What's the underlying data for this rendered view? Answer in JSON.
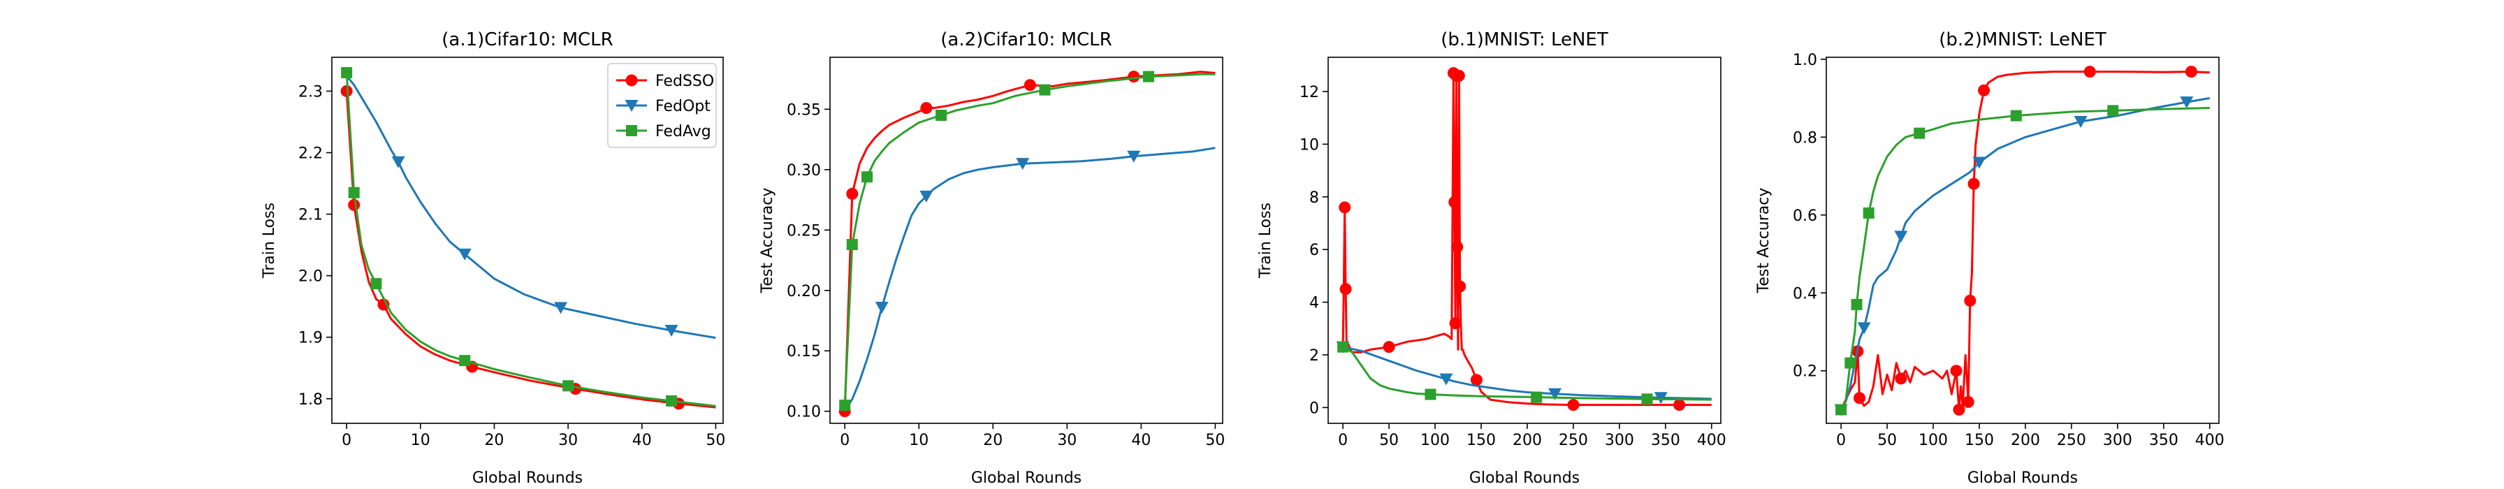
{
  "colors": {
    "FedSSO": "#ff0000",
    "FedOpt": "#1f77b4",
    "FedAvg": "#2ca02c"
  },
  "chart_data": [
    {
      "type": "line",
      "title": "(a.1)Cifar10: MCLR",
      "xlabel": "Global Rounds",
      "ylabel": "Train Loss",
      "xlim": [
        -2,
        51
      ],
      "ylim": [
        1.76,
        2.355
      ],
      "xticks": [
        "0",
        "10",
        "20",
        "30",
        "40",
        "50"
      ],
      "yticks": [
        "1.8",
        "1.9",
        "2.0",
        "2.1",
        "2.2",
        "2.3"
      ],
      "legend": {
        "position": "top-right",
        "entries": [
          "FedSSO",
          "FedOpt",
          "FedAvg"
        ]
      },
      "series": [
        {
          "name": "FedSSO",
          "marker": "circle",
          "x": [
            0,
            1,
            2,
            3,
            4,
            5,
            6,
            8,
            10,
            12,
            14,
            17,
            20,
            25,
            30,
            35,
            40,
            45,
            50
          ],
          "y": [
            2.3,
            2.115,
            2.04,
            1.99,
            1.962,
            1.953,
            1.93,
            1.905,
            1.885,
            1.872,
            1.862,
            1.852,
            1.843,
            1.829,
            1.818,
            1.808,
            1.799,
            1.792,
            1.786
          ],
          "markers_x": [
            0,
            1,
            5,
            17,
            31,
            45
          ]
        },
        {
          "name": "FedOpt",
          "marker": "triangle",
          "x": [
            0,
            1,
            2,
            4,
            6,
            7,
            8,
            10,
            12,
            14,
            16,
            18,
            20,
            24,
            29,
            34,
            39,
            44,
            50
          ],
          "y": [
            2.325,
            2.31,
            2.29,
            2.25,
            2.205,
            2.185,
            2.16,
            2.12,
            2.085,
            2.055,
            2.035,
            2.015,
            1.995,
            1.97,
            1.948,
            1.935,
            1.922,
            1.911,
            1.899
          ],
          "markers_x": [
            7,
            16,
            29,
            44
          ]
        },
        {
          "name": "FedAvg",
          "marker": "square",
          "x": [
            0,
            1,
            2,
            3,
            4,
            6,
            8,
            10,
            12,
            14,
            16,
            20,
            25,
            30,
            35,
            40,
            45,
            50
          ],
          "y": [
            2.33,
            2.135,
            2.05,
            2.01,
            1.987,
            1.94,
            1.912,
            1.893,
            1.879,
            1.869,
            1.862,
            1.848,
            1.834,
            1.821,
            1.811,
            1.802,
            1.795,
            1.788
          ],
          "markers_x": [
            0,
            1,
            4,
            16,
            30,
            44
          ]
        }
      ]
    },
    {
      "type": "line",
      "title": "(a.2)Cifar10: MCLR",
      "xlabel": "Global Rounds",
      "ylabel": "Test Accuracy",
      "xlim": [
        -2,
        51
      ],
      "ylim": [
        0.09,
        0.393
      ],
      "xticks": [
        "0",
        "10",
        "20",
        "30",
        "40",
        "50"
      ],
      "yticks": [
        "0.10",
        "0.15",
        "0.20",
        "0.25",
        "0.30",
        "0.35"
      ],
      "series": [
        {
          "name": "FedSSO",
          "marker": "circle",
          "x": [
            0,
            1,
            2,
            3,
            4,
            5,
            6,
            8,
            10,
            11,
            12,
            14,
            16,
            18,
            20,
            22,
            25,
            28,
            30,
            35,
            39,
            42,
            45,
            48,
            50
          ],
          "y": [
            0.1,
            0.28,
            0.305,
            0.318,
            0.326,
            0.332,
            0.337,
            0.343,
            0.348,
            0.351,
            0.351,
            0.353,
            0.356,
            0.358,
            0.361,
            0.365,
            0.37,
            0.369,
            0.371,
            0.374,
            0.377,
            0.378,
            0.379,
            0.381,
            0.38
          ],
          "markers_x": [
            0,
            1,
            11,
            25,
            39
          ]
        },
        {
          "name": "FedOpt",
          "marker": "triangle",
          "x": [
            0,
            1,
            2,
            3,
            4,
            5,
            6,
            7,
            8,
            9,
            10,
            11,
            12,
            14,
            16,
            18,
            20,
            24,
            28,
            32,
            36,
            39,
            43,
            47,
            50
          ],
          "y": [
            0.1,
            0.11,
            0.125,
            0.143,
            0.163,
            0.186,
            0.207,
            0.227,
            0.245,
            0.262,
            0.272,
            0.278,
            0.284,
            0.292,
            0.297,
            0.3,
            0.302,
            0.305,
            0.306,
            0.307,
            0.309,
            0.311,
            0.313,
            0.315,
            0.318
          ],
          "markers_x": [
            5,
            11,
            24,
            39
          ]
        },
        {
          "name": "FedAvg",
          "marker": "square",
          "x": [
            0,
            1,
            2,
            3,
            4,
            5,
            6,
            8,
            10,
            13,
            15,
            18,
            20,
            23,
            27,
            30,
            35,
            41,
            45,
            48,
            50
          ],
          "y": [
            0.105,
            0.238,
            0.272,
            0.294,
            0.307,
            0.315,
            0.322,
            0.331,
            0.339,
            0.345,
            0.349,
            0.353,
            0.355,
            0.361,
            0.366,
            0.369,
            0.373,
            0.377,
            0.378,
            0.379,
            0.379
          ],
          "markers_x": [
            0,
            1,
            3,
            13,
            27,
            41
          ]
        }
      ]
    },
    {
      "type": "line",
      "title": "(b.1)MNIST: LeNET",
      "xlabel": "Global Rounds",
      "ylabel": "Train Loss",
      "xlim": [
        -16,
        410
      ],
      "ylim": [
        -0.6,
        13.3
      ],
      "xticks": [
        "0",
        "50",
        "100",
        "150",
        "200",
        "250",
        "300",
        "350",
        "400"
      ],
      "yticks": [
        "0",
        "2",
        "4",
        "6",
        "8",
        "10",
        "12"
      ],
      "series": [
        {
          "name": "FedSSO",
          "marker": "circle",
          "x": [
            0,
            1,
            2,
            3,
            4,
            6,
            8,
            10,
            20,
            30,
            50,
            70,
            90,
            100,
            110,
            115,
            118,
            120,
            121,
            122,
            123,
            124,
            125,
            126,
            127,
            128,
            129,
            130,
            132,
            135,
            140,
            145,
            150,
            160,
            180,
            200,
            220,
            250,
            280,
            300,
            330,
            365,
            400
          ],
          "y": [
            2.3,
            4.6,
            7.6,
            4.5,
            2.3,
            2.4,
            2.2,
            2.1,
            2.1,
            2.2,
            2.3,
            2.5,
            2.6,
            2.7,
            2.8,
            2.7,
            2.6,
            12.7,
            7.8,
            3.2,
            12.6,
            6.1,
            2.2,
            12.6,
            4.6,
            3.1,
            2.2,
            2.2,
            2.0,
            1.8,
            1.5,
            1.05,
            0.6,
            0.3,
            0.2,
            0.15,
            0.12,
            0.1,
            0.1,
            0.1,
            0.1,
            0.1,
            0.1
          ],
          "markers_x": [
            2,
            3,
            50,
            120,
            121,
            122,
            123,
            124,
            126,
            127,
            145,
            250,
            365
          ]
        },
        {
          "name": "FedOpt",
          "marker": "triangle",
          "x": [
            0,
            20,
            40,
            60,
            80,
            100,
            120,
            140,
            160,
            180,
            200,
            230,
            260,
            300,
            340,
            400
          ],
          "y": [
            2.3,
            2.15,
            1.9,
            1.65,
            1.4,
            1.2,
            1.0,
            0.85,
            0.75,
            0.65,
            0.58,
            0.52,
            0.47,
            0.42,
            0.38,
            0.33
          ],
          "markers_x": [
            0,
            112,
            230,
            345
          ]
        },
        {
          "name": "FedAvg",
          "marker": "square",
          "x": [
            0,
            10,
            20,
            30,
            40,
            50,
            60,
            70,
            80,
            95,
            120,
            150,
            200,
            250,
            300,
            330,
            400
          ],
          "y": [
            2.3,
            2.1,
            1.6,
            1.1,
            0.85,
            0.72,
            0.65,
            0.58,
            0.53,
            0.5,
            0.46,
            0.43,
            0.4,
            0.36,
            0.34,
            0.32,
            0.3
          ],
          "markers_x": [
            0,
            95,
            210,
            330
          ]
        }
      ]
    },
    {
      "type": "line",
      "title": "(b.2)MNIST: LeNET",
      "xlabel": "Global Rounds",
      "ylabel": "Test Accuracy",
      "xlim": [
        -16,
        410
      ],
      "ylim": [
        0.065,
        1.005
      ],
      "xticks": [
        "0",
        "50",
        "100",
        "150",
        "200",
        "250",
        "300",
        "350",
        "400"
      ],
      "yticks": [
        "0.2",
        "0.4",
        "0.6",
        "0.8",
        "1.0"
      ],
      "series": [
        {
          "name": "FedSSO",
          "marker": "circle",
          "x": [
            0,
            10,
            15,
            18,
            20,
            25,
            30,
            35,
            40,
            45,
            50,
            55,
            60,
            65,
            70,
            75,
            80,
            90,
            100,
            110,
            115,
            120,
            125,
            128,
            130,
            132,
            135,
            138,
            140,
            142,
            144,
            146,
            148,
            150,
            155,
            160,
            170,
            180,
            200,
            230,
            270,
            300,
            350,
            380,
            400
          ],
          "y": [
            0.1,
            0.15,
            0.17,
            0.25,
            0.13,
            0.11,
            0.12,
            0.16,
            0.24,
            0.14,
            0.19,
            0.15,
            0.22,
            0.18,
            0.2,
            0.17,
            0.21,
            0.19,
            0.2,
            0.18,
            0.2,
            0.14,
            0.2,
            0.1,
            0.16,
            0.11,
            0.24,
            0.12,
            0.38,
            0.45,
            0.68,
            0.78,
            0.82,
            0.86,
            0.92,
            0.94,
            0.955,
            0.96,
            0.965,
            0.968,
            0.968,
            0.968,
            0.967,
            0.968,
            0.966
          ],
          "markers_x": [
            18,
            20,
            65,
            125,
            128,
            138,
            140,
            144,
            155,
            270,
            380
          ]
        },
        {
          "name": "FedOpt",
          "marker": "triangle",
          "x": [
            0,
            5,
            10,
            15,
            20,
            25,
            30,
            35,
            40,
            50,
            60,
            65,
            70,
            80,
            90,
            100,
            120,
            140,
            150,
            170,
            200,
            230,
            260,
            300,
            340,
            375,
            400
          ],
          "y": [
            0.1,
            0.12,
            0.16,
            0.22,
            0.28,
            0.31,
            0.36,
            0.42,
            0.44,
            0.46,
            0.51,
            0.545,
            0.58,
            0.61,
            0.63,
            0.65,
            0.68,
            0.71,
            0.735,
            0.77,
            0.8,
            0.82,
            0.84,
            0.855,
            0.875,
            0.89,
            0.9
          ],
          "markers_x": [
            0,
            25,
            65,
            150,
            260,
            375
          ]
        },
        {
          "name": "FedAvg",
          "marker": "square",
          "x": [
            0,
            5,
            10,
            15,
            17,
            20,
            25,
            30,
            35,
            40,
            50,
            60,
            70,
            85,
            100,
            120,
            150,
            190,
            250,
            295,
            350,
            400
          ],
          "y": [
            0.1,
            0.12,
            0.22,
            0.3,
            0.37,
            0.44,
            0.52,
            0.605,
            0.66,
            0.7,
            0.75,
            0.78,
            0.8,
            0.81,
            0.82,
            0.835,
            0.845,
            0.855,
            0.865,
            0.868,
            0.872,
            0.875
          ],
          "markers_x": [
            0,
            10,
            17,
            30,
            85,
            190,
            295
          ]
        }
      ]
    }
  ]
}
